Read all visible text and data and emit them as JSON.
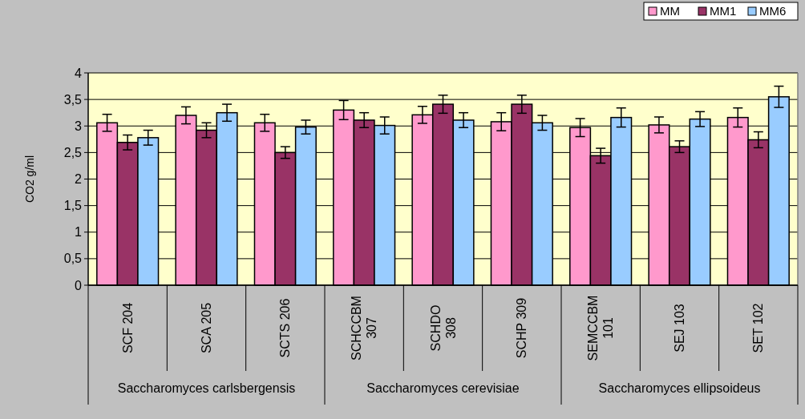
{
  "chart_data": {
    "type": "bar",
    "ylabel": "CO2 g/ml",
    "categories": [
      "SCF 204",
      "SCA 205",
      "SCTS 206",
      "SCHCCBM 307",
      "SCHDO 308",
      "SCHP 309",
      "SEMCCBM 101",
      "SEJ 103",
      "SET 102"
    ],
    "annotations": [
      "Saccharomyces carlsbergensis",
      "Saccharomyces cerevisiae",
      "Saccharomyces ellipsoideus"
    ],
    "series": [
      {
        "name": "MM",
        "color": "#ff99cc",
        "values": [
          3.06,
          3.2,
          3.06,
          3.3,
          3.21,
          3.08,
          2.97,
          3.02,
          3.16
        ],
        "errors": [
          0.16,
          0.16,
          0.16,
          0.18,
          0.16,
          0.17,
          0.17,
          0.15,
          0.18
        ]
      },
      {
        "name": "MM1",
        "color": "#993366",
        "values": [
          2.69,
          2.92,
          2.5,
          3.11,
          3.41,
          3.41,
          2.44,
          2.61,
          2.74
        ],
        "errors": [
          0.14,
          0.14,
          0.11,
          0.14,
          0.17,
          0.17,
          0.14,
          0.11,
          0.15
        ]
      },
      {
        "name": "MM6",
        "color": "#99ccff",
        "values": [
          2.78,
          3.25,
          2.98,
          3.01,
          3.11,
          3.06,
          3.16,
          3.13,
          3.55
        ],
        "errors": [
          0.14,
          0.16,
          0.13,
          0.16,
          0.14,
          0.14,
          0.18,
          0.14,
          0.2
        ]
      }
    ],
    "ylim": [
      0,
      4
    ],
    "yticks": [
      0,
      {
        "value": 0.5,
        "label": "0,5"
      },
      1,
      {
        "value": 1.5,
        "label": "1,5"
      },
      2,
      {
        "value": 2.5,
        "label": "2,5"
      },
      3,
      {
        "value": 3.5,
        "label": "3,5"
      },
      4
    ],
    "grid": "y",
    "legend": "top right"
  }
}
